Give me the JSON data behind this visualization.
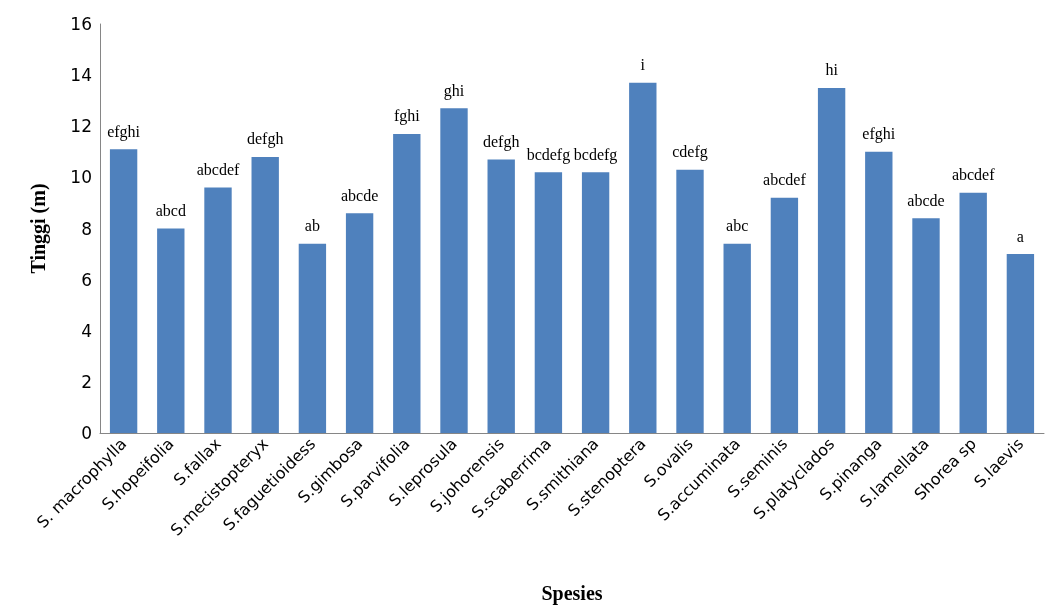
{
  "chart_data": {
    "type": "bar",
    "xlabel": "Spesies",
    "ylabel": "Tinggi (m)",
    "categories": [
      "S. macrophylla",
      "S.hopeifolia",
      "S.fallax",
      "S.mecistopteryx",
      "S.faguetioidess",
      "S.gimbosa",
      "S.parvifolia",
      "S.leprosula",
      "S.johorensis",
      "S.scaberrima",
      "S.smithiana",
      "S.stenoptera",
      "S.ovalis",
      "S.accuminata",
      "S.seminis",
      "S.platyclados",
      "S.pinanga",
      "S.lamellata",
      "Shorea sp",
      "S.laevis"
    ],
    "values": [
      11.1,
      8.0,
      9.6,
      10.8,
      7.4,
      8.6,
      11.7,
      12.7,
      10.7,
      10.2,
      10.2,
      13.7,
      10.3,
      7.4,
      9.2,
      13.5,
      11.0,
      8.4,
      9.4,
      7.0
    ],
    "value_labels": [
      "efghi",
      "abcd",
      "abcdef",
      "defgh",
      "ab",
      "abcde",
      "fghi",
      "ghi",
      "defgh",
      "bcdefg",
      "bcdefg",
      "i",
      "cdefg",
      "abc",
      "abcdef",
      "hi",
      "efghi",
      "abcde",
      "abcdef",
      "a"
    ],
    "color": "#4f81bd",
    "ylim": [
      0,
      16
    ],
    "yticks": [
      0,
      2,
      4,
      6,
      8,
      10,
      12,
      14,
      16
    ],
    "grid": false
  }
}
